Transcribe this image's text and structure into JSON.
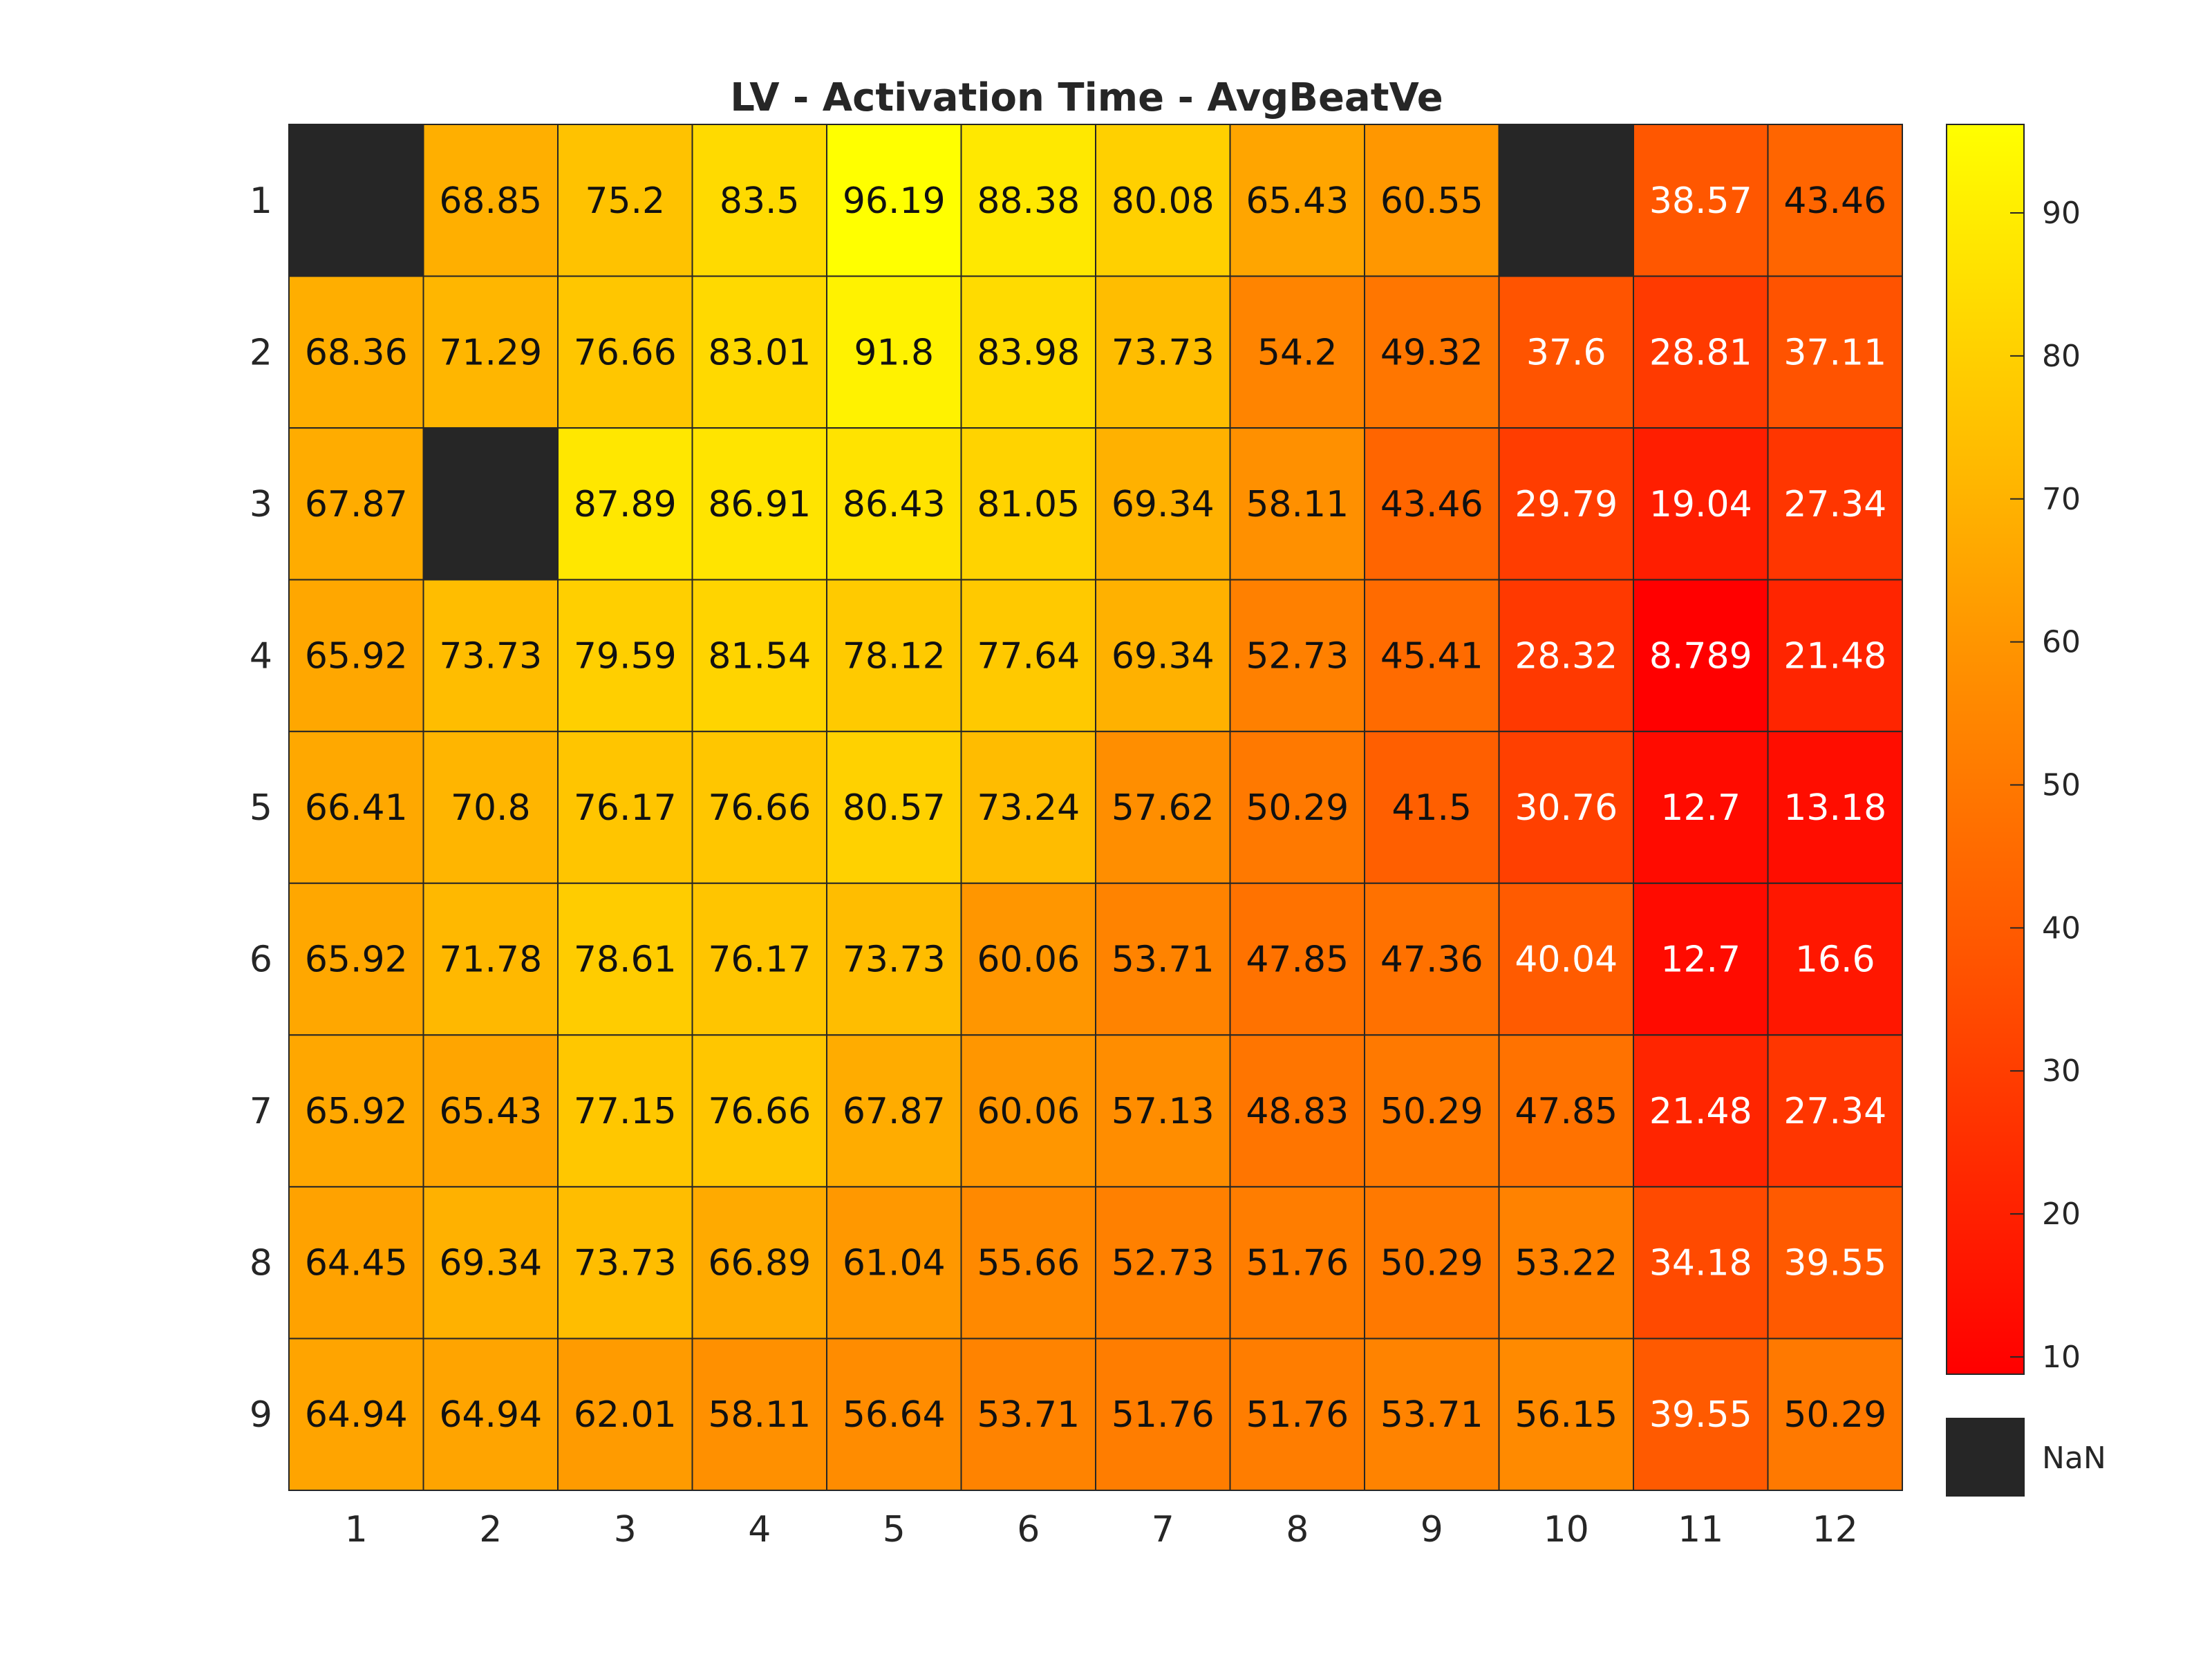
{
  "chart_data": {
    "type": "heatmap",
    "title": "LV - Activation Time - AvgBeatVe",
    "x_labels": [
      "1",
      "2",
      "3",
      "4",
      "5",
      "6",
      "7",
      "8",
      "9",
      "10",
      "11",
      "12"
    ],
    "y_labels": [
      "1",
      "2",
      "3",
      "4",
      "5",
      "6",
      "7",
      "8",
      "9"
    ],
    "values": [
      [
        null,
        68.85,
        75.2,
        83.5,
        96.19,
        88.38,
        80.08,
        65.43,
        60.55,
        null,
        38.57,
        43.46
      ],
      [
        68.36,
        71.29,
        76.66,
        83.01,
        91.8,
        83.98,
        73.73,
        54.2,
        49.32,
        37.6,
        28.81,
        37.11
      ],
      [
        67.87,
        null,
        87.89,
        86.91,
        86.43,
        81.05,
        69.34,
        58.11,
        43.46,
        29.79,
        19.04,
        27.34
      ],
      [
        65.92,
        73.73,
        79.59,
        81.54,
        78.12,
        77.64,
        69.34,
        52.73,
        45.41,
        28.32,
        8.789,
        21.48
      ],
      [
        66.41,
        70.8,
        76.17,
        76.66,
        80.57,
        73.24,
        57.62,
        50.29,
        41.5,
        30.76,
        12.7,
        13.18
      ],
      [
        65.92,
        71.78,
        78.61,
        76.17,
        73.73,
        60.06,
        53.71,
        47.85,
        47.36,
        40.04,
        12.7,
        16.6
      ],
      [
        65.92,
        65.43,
        77.15,
        76.66,
        67.87,
        60.06,
        57.13,
        48.83,
        50.29,
        47.85,
        21.48,
        27.34
      ],
      [
        64.45,
        69.34,
        73.73,
        66.89,
        61.04,
        55.66,
        52.73,
        51.76,
        50.29,
        53.22,
        34.18,
        39.55
      ],
      [
        64.94,
        64.94,
        62.01,
        58.11,
        56.64,
        53.71,
        51.76,
        51.76,
        53.71,
        56.15,
        39.55,
        50.29
      ]
    ],
    "colormap": "autumn (red to yellow)",
    "color_range": [
      8.789,
      96.19
    ],
    "colorbar_ticks": [
      10,
      20,
      30,
      40,
      50,
      60,
      70,
      80,
      90
    ],
    "nan_label": "NaN",
    "nan_color": "#262626",
    "low_color": "#ff0000",
    "high_color": "#ffff00"
  }
}
